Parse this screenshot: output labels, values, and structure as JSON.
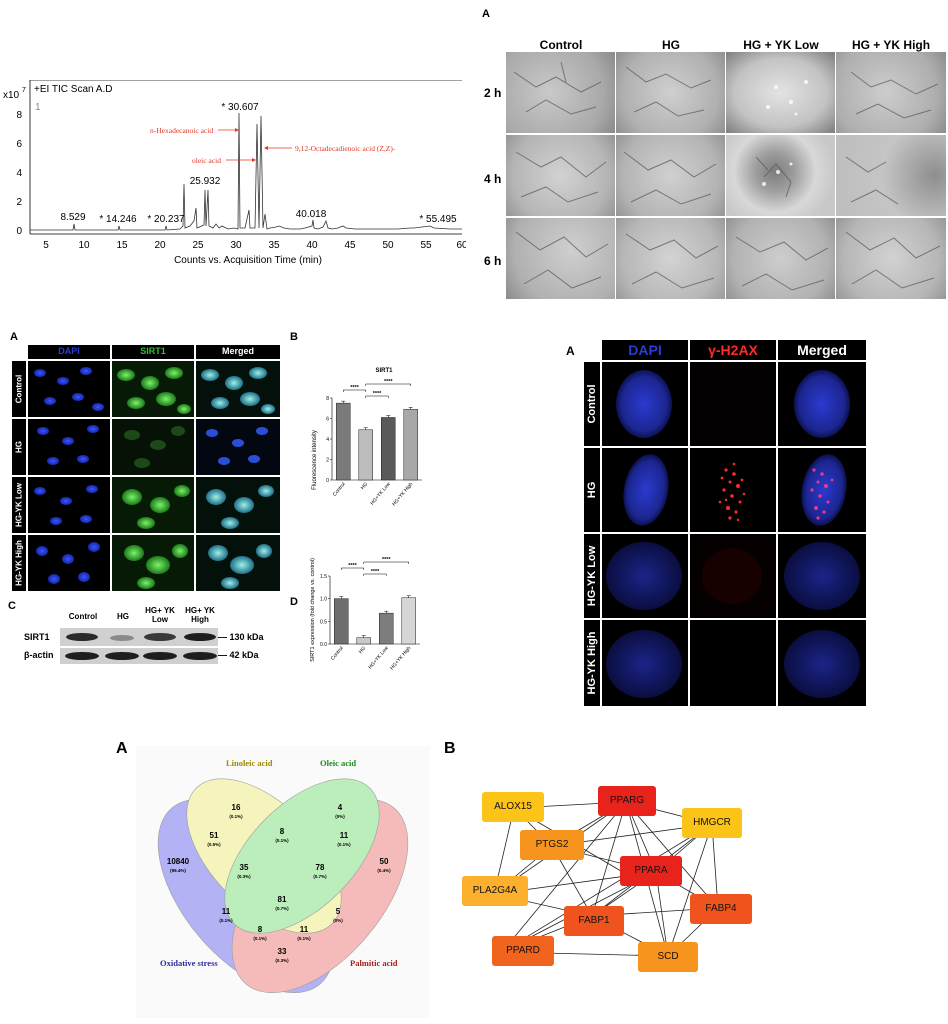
{
  "gcms": {
    "title": "+EI TIC Scan A.D",
    "y_scale": "x10",
    "y_exp": "7",
    "trace_index": "1",
    "xlabel": "Counts vs. Acquisition Time (min)",
    "x_ticks": [
      "5",
      "10",
      "15",
      "20",
      "25",
      "30",
      "35",
      "40",
      "45",
      "50",
      "55",
      "60"
    ],
    "y_ticks": [
      "0",
      "2",
      "4",
      "6",
      "8"
    ],
    "peak_labels": [
      "8.529",
      "* 14.246",
      "* 20.237",
      "25.932",
      "* 30.607",
      "40.018",
      "* 55.495"
    ],
    "annotations": [
      "n-Hexadecanoic acid",
      "oleic acid",
      "9,12-Octadecadienoic acid (Z,Z)-"
    ]
  },
  "tube": {
    "letter": "A",
    "columns": [
      "Control",
      "HG",
      "HG + YK Low",
      "HG + YK High"
    ],
    "rows": [
      "2 h",
      "4 h",
      "6 h"
    ]
  },
  "sirt1": {
    "letterA": "A",
    "letterB": "B",
    "letterC": "C",
    "letterD": "D",
    "columns": [
      "DAPI",
      "SIRT1",
      "Merged"
    ],
    "rows": [
      "Control",
      "HG",
      "HG-YK Low",
      "HG-YK High"
    ],
    "chartB_title": "SIRT1",
    "chartB_ylabel": "Fluorescence intensity",
    "chartD_ylabel": "SIRT1 expression (fold change vs. control)",
    "sig": "****",
    "wb_lanes": [
      "Control",
      "HG",
      "HG+ YK Low",
      "HG+ YK High"
    ],
    "wb_rows": [
      "SIRT1",
      "β-actin"
    ],
    "wb_sizes": [
      "— 130 kDa",
      "— 42 kDa"
    ]
  },
  "chart_data": [
    {
      "type": "bar",
      "title": "SIRT1",
      "ylabel": "Fluorescence intensity",
      "categories": [
        "Control",
        "HG",
        "HG+YK Low",
        "HG+YK High"
      ],
      "values": [
        7.5,
        4.9,
        6.1,
        6.9
      ],
      "ylim": [
        0,
        8
      ],
      "yticks": [
        "0",
        "2",
        "4",
        "6",
        "8"
      ]
    },
    {
      "type": "bar",
      "ylabel": "SIRT1 expression (fold change vs. control)",
      "categories": [
        "Control",
        "HG",
        "HG+YK Low",
        "HG+YK High"
      ],
      "values": [
        1.0,
        0.14,
        0.68,
        1.02
      ],
      "ylim": [
        0,
        1.5
      ],
      "yticks": [
        "0.0",
        "0.5",
        "1.0",
        "1.5"
      ]
    }
  ],
  "h2ax": {
    "letter": "A",
    "columns": [
      "DAPI",
      "γ-H2AX",
      "Merged"
    ],
    "rows": [
      "Control",
      "HG",
      "HG-YK Low",
      "HG-YK High"
    ]
  },
  "venn": {
    "letter": "A",
    "sets": [
      "Linoleic acid",
      "Oleic acid",
      "Oxidative stress",
      "Palmitic acid"
    ],
    "regions": [
      {
        "n": "16",
        "p": "(0.1%)"
      },
      {
        "n": "4",
        "p": "(0%)"
      },
      {
        "n": "51",
        "p": "(0.5%)"
      },
      {
        "n": "8",
        "p": "(0.1%)"
      },
      {
        "n": "11",
        "p": "(0.1%)"
      },
      {
        "n": "10840",
        "p": "(96.4%)"
      },
      {
        "n": "35",
        "p": "(0.3%)"
      },
      {
        "n": "78",
        "p": "(0.7%)"
      },
      {
        "n": "50",
        "p": "(0.4%)"
      },
      {
        "n": "11",
        "p": "(0.1%)"
      },
      {
        "n": "81",
        "p": "(0.7%)"
      },
      {
        "n": "5",
        "p": "(0%)"
      },
      {
        "n": "8",
        "p": "(0.1%)"
      },
      {
        "n": "11",
        "p": "(0.1%)"
      },
      {
        "n": "33",
        "p": "(0.3%)"
      }
    ]
  },
  "network": {
    "letter": "B",
    "nodes": [
      "ALOX15",
      "PPARG",
      "HMGCR",
      "PTGS2",
      "PPARA",
      "PLA2G4A",
      "FABP1",
      "FABP4",
      "PPARD",
      "SCD"
    ],
    "colors": {
      "red": "#e8231c",
      "orange_red": "#f0541e",
      "orange": "#f7941d",
      "yellow": "#fcc419"
    }
  }
}
